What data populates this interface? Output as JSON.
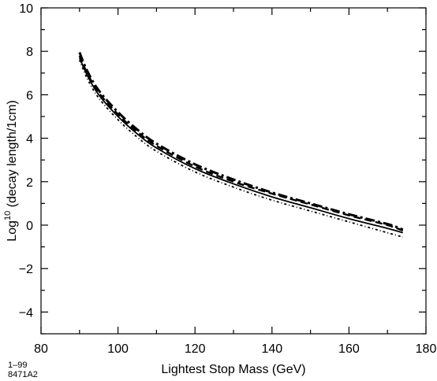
{
  "chart_data": {
    "type": "line",
    "title": "",
    "xlabel": "Lightest Stop Mass  (GeV)",
    "ylabel": {
      "prefix": "Log",
      "sup": "10",
      "suffix": " (decay length/1cm)"
    },
    "xlim": [
      80,
      180
    ],
    "ylim": [
      -5,
      10
    ],
    "x_ticks": [
      "80",
      "100",
      "120",
      "140",
      "160",
      "180"
    ],
    "y_ticks": [
      "10",
      "8",
      "6",
      "4",
      "2",
      "0",
      "−2",
      "−4"
    ],
    "grid": false,
    "legend": "none",
    "series": [
      {
        "style": "solid",
        "x": [
          90,
          92,
          95,
          100,
          105,
          110,
          120,
          130,
          140,
          150,
          160,
          170,
          174
        ],
        "y": [
          7.7,
          6.9,
          6.0,
          5.0,
          4.2,
          3.55,
          2.6,
          1.9,
          1.3,
          0.8,
          0.3,
          -0.15,
          -0.35
        ]
      },
      {
        "style": "dash",
        "x": [
          90,
          92,
          95,
          100,
          105,
          110,
          120,
          130,
          140,
          150,
          160,
          170,
          174
        ],
        "y": [
          7.8,
          7.0,
          6.1,
          5.1,
          4.3,
          3.65,
          2.7,
          2.0,
          1.45,
          0.95,
          0.45,
          0.0,
          -0.25
        ]
      },
      {
        "style": "dash-dot",
        "x": [
          90,
          92,
          95,
          100,
          105,
          110,
          120,
          130,
          140,
          150,
          160,
          170,
          174
        ],
        "y": [
          7.95,
          7.1,
          6.2,
          5.2,
          4.4,
          3.75,
          2.8,
          2.1,
          1.5,
          1.0,
          0.5,
          0.05,
          -0.2
        ]
      },
      {
        "style": "dot-dash",
        "x": [
          90,
          92,
          95,
          100,
          105,
          110,
          120,
          130,
          140,
          150,
          160,
          170,
          174
        ],
        "y": [
          7.6,
          6.75,
          5.85,
          4.85,
          4.05,
          3.4,
          2.45,
          1.75,
          1.15,
          0.65,
          0.15,
          -0.35,
          -0.55
        ]
      }
    ]
  },
  "footnote": {
    "line1": "1–99",
    "line2": "8471A2"
  }
}
